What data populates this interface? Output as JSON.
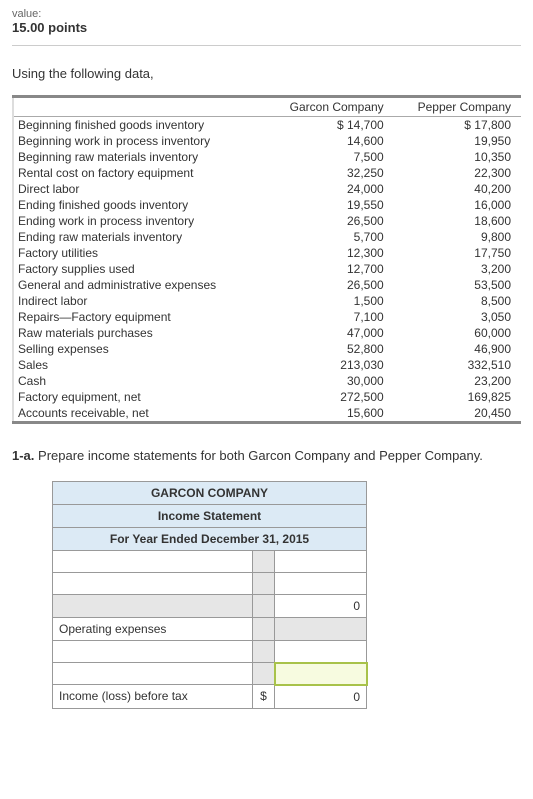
{
  "header": {
    "value_label": "value:",
    "points": "15.00 points"
  },
  "prompt": "Using the following data,",
  "data_table": {
    "col1_header": "Garcon Company",
    "col2_header": "Pepper Company",
    "rows": [
      {
        "label": "Beginning finished goods inventory",
        "c1": "$ 14,700",
        "c2": "$ 17,800"
      },
      {
        "label": "Beginning work in process inventory",
        "c1": "14,600",
        "c2": "19,950"
      },
      {
        "label": "Beginning raw materials inventory",
        "c1": "7,500",
        "c2": "10,350"
      },
      {
        "label": "Rental cost on factory equipment",
        "c1": "32,250",
        "c2": "22,300"
      },
      {
        "label": "Direct labor",
        "c1": "24,000",
        "c2": "40,200"
      },
      {
        "label": "Ending finished goods inventory",
        "c1": "19,550",
        "c2": "16,000"
      },
      {
        "label": "Ending work in process inventory",
        "c1": "26,500",
        "c2": "18,600"
      },
      {
        "label": "Ending raw materials inventory",
        "c1": "5,700",
        "c2": "9,800"
      },
      {
        "label": "Factory utilities",
        "c1": "12,300",
        "c2": "17,750"
      },
      {
        "label": "Factory supplies used",
        "c1": "12,700",
        "c2": "3,200"
      },
      {
        "label": "General and administrative expenses",
        "c1": "26,500",
        "c2": "53,500"
      },
      {
        "label": "Indirect labor",
        "c1": "1,500",
        "c2": "8,500"
      },
      {
        "label": "Repairs—Factory equipment",
        "c1": "7,100",
        "c2": "3,050"
      },
      {
        "label": "Raw materials purchases",
        "c1": "47,000",
        "c2": "60,000"
      },
      {
        "label": "Selling expenses",
        "c1": "52,800",
        "c2": "46,900"
      },
      {
        "label": "Sales",
        "c1": "213,030",
        "c2": "332,510"
      },
      {
        "label": "Cash",
        "c1": "30,000",
        "c2": "23,200"
      },
      {
        "label": "Factory equipment, net",
        "c1": "272,500",
        "c2": "169,825"
      },
      {
        "label": "Accounts receivable, net",
        "c1": "15,600",
        "c2": "20,450"
      }
    ]
  },
  "q1a": {
    "num": "1-a.",
    "text": "Prepare income statements for both Garcon Company and Pepper Company."
  },
  "income": {
    "title1": "GARCON COMPANY",
    "title2": "Income Statement",
    "title3": "For Year Ended December 31, 2015",
    "operating_expenses": "Operating expenses",
    "income_before_tax": "Income (loss) before tax",
    "dollar": "$",
    "zero": "0"
  }
}
